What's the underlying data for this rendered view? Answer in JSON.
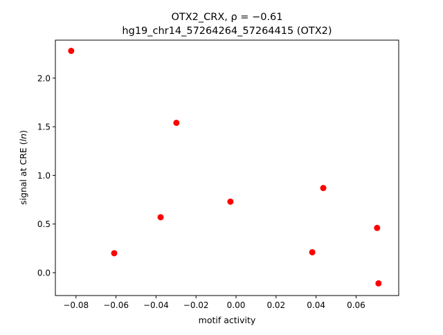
{
  "chart_data": {
    "type": "scatter",
    "title_line1": "OTX2_CRX, ρ = −0.61",
    "title_line2": "hg19_chr14_57264264_57264415 (OTX2)",
    "xlabel": "motif activity",
    "ylabel": "signal at CRE (ln)",
    "xlim": [
      -0.0903,
      0.0813
    ],
    "ylim": [
      -0.235,
      2.39
    ],
    "xticks": [
      -0.08,
      -0.06,
      -0.04,
      -0.02,
      0.0,
      0.02,
      0.04,
      0.06
    ],
    "xtick_labels": [
      "−0.08",
      "−0.06",
      "−0.04",
      "−0.02",
      "0.00",
      "0.02",
      "0.04",
      "0.06"
    ],
    "yticks": [
      0.0,
      0.5,
      1.0,
      1.5,
      2.0
    ],
    "ytick_labels": [
      "0.0",
      "0.5",
      "1.0",
      "1.5",
      "2.0"
    ],
    "grid": false,
    "marker_color": "#ff0000",
    "points": [
      {
        "x": -0.0824,
        "y": 2.28
      },
      {
        "x": -0.0609,
        "y": 0.2
      },
      {
        "x": -0.0377,
        "y": 0.57
      },
      {
        "x": -0.0298,
        "y": 1.54
      },
      {
        "x": -0.0028,
        "y": 0.73
      },
      {
        "x": 0.0381,
        "y": 0.21
      },
      {
        "x": 0.0436,
        "y": 0.87
      },
      {
        "x": 0.0705,
        "y": 0.46
      },
      {
        "x": 0.0712,
        "y": -0.11
      }
    ]
  }
}
